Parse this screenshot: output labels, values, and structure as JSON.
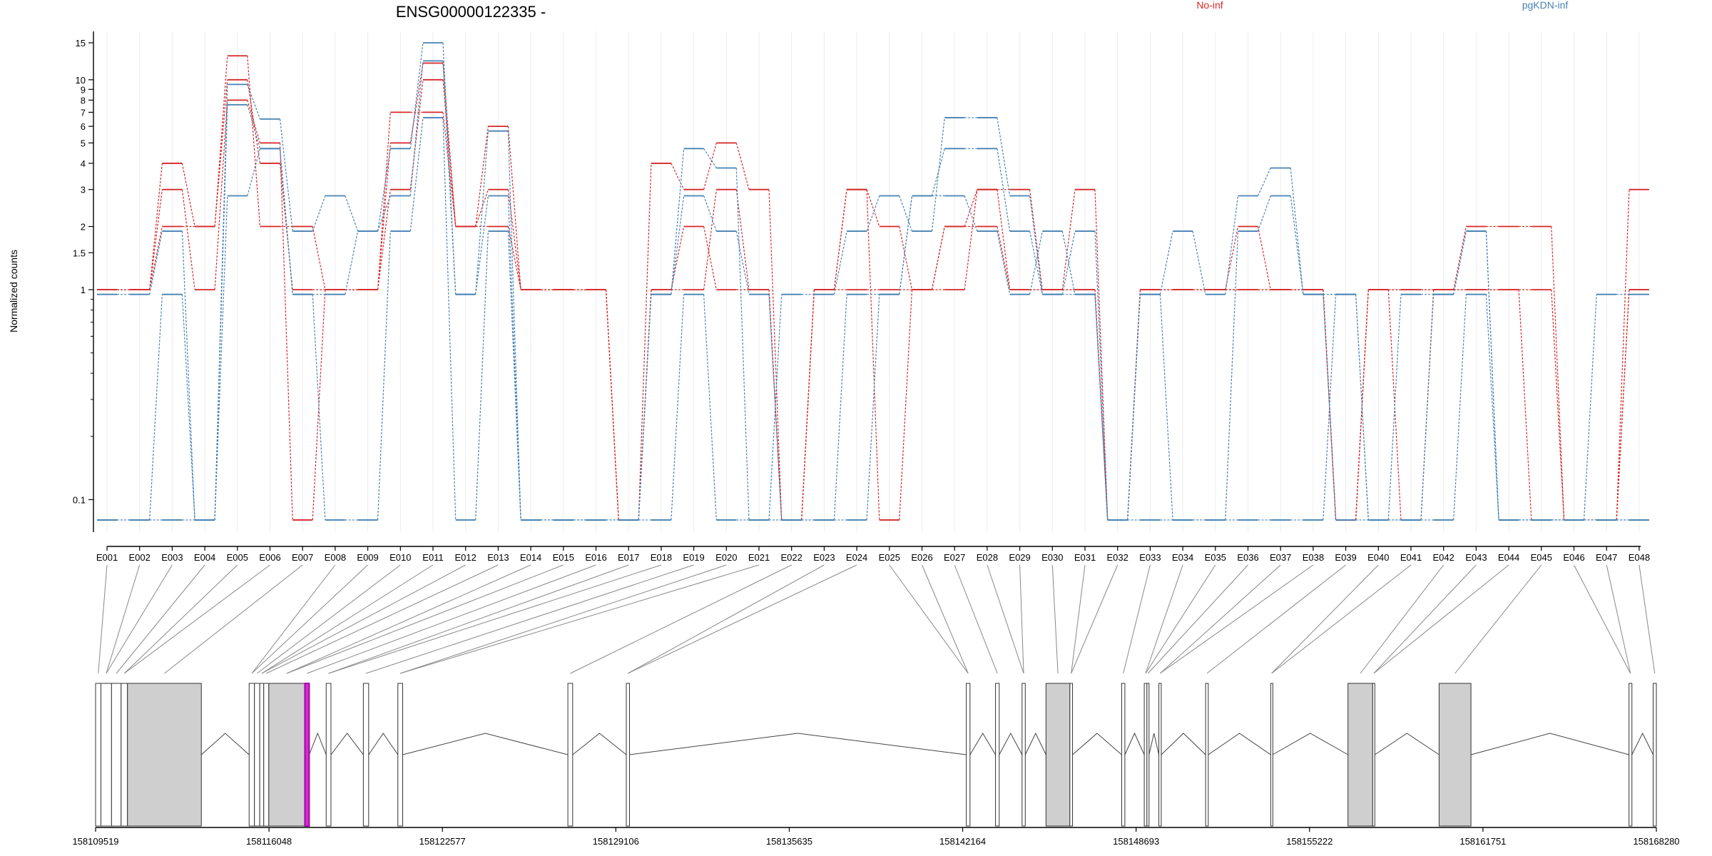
{
  "page": {
    "title": "ENSG00000122335 -",
    "legend": [
      {
        "name": "No-inf",
        "color": "#d62728"
      },
      {
        "name": "pgKDN-inf",
        "color": "#4682b4"
      }
    ],
    "ylabel": "Normalized counts"
  },
  "chart_data": {
    "type": "line",
    "title": "ENSG00000122335 -",
    "ylabel": "Normalized counts",
    "yscale": "log",
    "ylim": [
      0.07,
      17
    ],
    "grid": "vertical",
    "legend_position": "top",
    "ytick_labels": [
      "15",
      "10",
      "9",
      "8",
      "7",
      "6",
      "5",
      "4",
      "3",
      "2",
      "1.5",
      "1",
      "0.1"
    ],
    "yticks": [
      15,
      10,
      9,
      8,
      7,
      6,
      5,
      4,
      3,
      2,
      1.5,
      1,
      0.1
    ],
    "categories": [
      "E001",
      "E002",
      "E003",
      "E004",
      "E005",
      "E006",
      "E007",
      "E008",
      "E009",
      "E010",
      "E011",
      "E012",
      "E013",
      "E014",
      "E015",
      "E016",
      "E017",
      "E018",
      "E019",
      "E020",
      "E021",
      "E022",
      "E023",
      "E024",
      "E025",
      "E026",
      "E027",
      "E028",
      "E029",
      "E030",
      "E031",
      "E032",
      "E033",
      "E034",
      "E035",
      "E036",
      "E037",
      "E038",
      "E039",
      "E040",
      "E041",
      "E042",
      "E043",
      "E044",
      "E045",
      "E046",
      "E047",
      "E048"
    ],
    "series": [
      {
        "name": "No-inf",
        "group": "No-inf",
        "color": "#d62728",
        "values": [
          1,
          1,
          4,
          2,
          13,
          2,
          2,
          1,
          1,
          5,
          12,
          2,
          6,
          1,
          1,
          1,
          0.08,
          4,
          3,
          5,
          3,
          0.08,
          1,
          3,
          2,
          1,
          1,
          3,
          3,
          1,
          3,
          0.08,
          1,
          1,
          1,
          2,
          1,
          1,
          0.08,
          1,
          1,
          1,
          2,
          2,
          2,
          0.08,
          0.08,
          3
        ]
      },
      {
        "name": "No-inf",
        "group": "No-inf",
        "color": "#d62728",
        "values": [
          1,
          1,
          2,
          2,
          10,
          4,
          1,
          1,
          1,
          3,
          10,
          2,
          3,
          1,
          1,
          1,
          0.08,
          1,
          1,
          3,
          1,
          0.08,
          1,
          3,
          0.08,
          1,
          2,
          3,
          1,
          1,
          1,
          0.08,
          1,
          1,
          1,
          1,
          1,
          1,
          0.08,
          1,
          1,
          1,
          1,
          1,
          0.08,
          0.08,
          0.08,
          1
        ]
      },
      {
        "name": "No-inf",
        "group": "No-inf",
        "color": "#d62728",
        "values": [
          1,
          1,
          3,
          1,
          8,
          5,
          0.08,
          1,
          1,
          7,
          7,
          2,
          2,
          1,
          1,
          1,
          0.08,
          1,
          2,
          1,
          1,
          0.08,
          1,
          1,
          1,
          1,
          2,
          2,
          1,
          1,
          1,
          0.08,
          1,
          1,
          1,
          1,
          1,
          1,
          0.08,
          1,
          0.08,
          1,
          1,
          1,
          1,
          0.08,
          0.08,
          1
        ]
      },
      {
        "name": "pgKDN-inf",
        "group": "pgKDN-inf",
        "color": "#4682b4",
        "values": [
          0.95,
          0.95,
          1.9,
          0.08,
          9.5,
          6.5,
          1.9,
          2.8,
          1.9,
          4.7,
          15,
          0.95,
          5.7,
          0.08,
          0.08,
          0.08,
          0.08,
          0.95,
          4.7,
          3.8,
          0.08,
          0.95,
          0.95,
          1.9,
          2.8,
          1.9,
          6.6,
          6.6,
          2.8,
          0.95,
          1.9,
          0.08,
          0.95,
          1.9,
          0.95,
          2.8,
          3.8,
          0.95,
          0.95,
          0.08,
          0.95,
          0.95,
          1.9,
          0.08,
          0.08,
          0.08,
          0.95,
          0.95
        ]
      },
      {
        "name": "pgKDN-inf",
        "group": "pgKDN-inf",
        "color": "#4682b4",
        "values": [
          0.08,
          0.08,
          0.95,
          0.08,
          7.6,
          4.7,
          0.95,
          0.95,
          1.9,
          2.8,
          12.3,
          0.95,
          2.8,
          0.08,
          0.08,
          0.08,
          0.08,
          0.95,
          2.8,
          1.9,
          0.95,
          0.08,
          0.08,
          0.95,
          0.95,
          2.8,
          4.7,
          4.7,
          1.9,
          0.95,
          0.95,
          0.08,
          0.95,
          0.08,
          0.08,
          1.9,
          2.8,
          0.95,
          0.08,
          0.08,
          0.08,
          0.95,
          1.9,
          0.08,
          0.08,
          0.08,
          0.08,
          0.08
        ]
      },
      {
        "name": "pgKDN-inf",
        "group": "pgKDN-inf",
        "color": "#4682b4",
        "values": [
          0.08,
          0.08,
          0.08,
          0.08,
          2.8,
          4.7,
          0.95,
          0.08,
          0.08,
          1.9,
          6.6,
          0.08,
          1.9,
          0.08,
          0.08,
          0.08,
          0.08,
          0.08,
          0.95,
          0.08,
          0.08,
          0.08,
          0.08,
          0.08,
          0.95,
          2.8,
          2.8,
          1.9,
          0.95,
          1.9,
          0.95,
          0.08,
          0.08,
          0.08,
          0.08,
          0.08,
          0.08,
          0.08,
          0.95,
          0.08,
          0.08,
          0.08,
          0.95,
          0.08,
          0.08,
          0.08,
          0.08,
          0.08
        ]
      }
    ],
    "genomic_axis": {
      "tick_labels": [
        "158109519",
        "158116048",
        "158122577",
        "158129106",
        "158135635",
        "158142164",
        "158148693",
        "158155222",
        "158161751",
        "158168280"
      ],
      "ticks": [
        158109519,
        158116048,
        158122577,
        158129106,
        158135635,
        158142164,
        158148693,
        158155222,
        158161751,
        158168280
      ]
    },
    "exons": [
      {
        "id": "E001",
        "start": 158109519,
        "end": 158109720
      },
      {
        "id": "E002",
        "start": 158109720,
        "end": 158110120
      },
      {
        "id": "E003",
        "start": 158110120,
        "end": 158110480
      },
      {
        "id": "E004",
        "start": 158110480,
        "end": 158110720
      },
      {
        "id": "E005",
        "start": 158110720,
        "end": 158113500
      },
      {
        "id": "E006",
        "start": 158115300,
        "end": 158115500
      },
      {
        "id": "E007",
        "start": 158115500,
        "end": 158115700
      },
      {
        "id": "E008",
        "start": 158115700,
        "end": 158115850
      },
      {
        "id": "E009",
        "start": 158115850,
        "end": 158116040
      },
      {
        "id": "E010",
        "start": 158116040,
        "end": 158117400
      },
      {
        "id": "E011",
        "start": 158117400,
        "end": 158117560
      },
      {
        "id": "E012",
        "start": 158118200,
        "end": 158118380
      },
      {
        "id": "E013",
        "start": 158119600,
        "end": 158119800
      },
      {
        "id": "E014",
        "start": 158120900,
        "end": 158121080
      },
      {
        "id": "E015",
        "start": 158127300,
        "end": 158127480
      },
      {
        "id": "E016",
        "start": 158129500,
        "end": 158129620
      },
      {
        "id": "E017",
        "start": 158142300,
        "end": 158142440
      },
      {
        "id": "E018",
        "start": 158143400,
        "end": 158143540
      },
      {
        "id": "E019",
        "start": 158144400,
        "end": 158144520
      },
      {
        "id": "E020",
        "start": 158145300,
        "end": 158146200
      },
      {
        "id": "E021",
        "start": 158146200,
        "end": 158146300
      },
      {
        "id": "E022",
        "start": 158148150,
        "end": 158148270
      },
      {
        "id": "E023",
        "start": 158149000,
        "end": 158149100
      },
      {
        "id": "E024",
        "start": 158149100,
        "end": 158149180
      },
      {
        "id": "E025",
        "start": 158149550,
        "end": 158149640
      },
      {
        "id": "E026",
        "start": 158151310,
        "end": 158151410
      },
      {
        "id": "E027",
        "start": 158153760,
        "end": 158153830
      },
      {
        "id": "E028",
        "start": 158156670,
        "end": 158157600
      },
      {
        "id": "E029",
        "start": 158157600,
        "end": 158157680
      },
      {
        "id": "E030",
        "start": 158160100,
        "end": 158161300
      },
      {
        "id": "E031",
        "start": 158167250,
        "end": 158167360
      },
      {
        "id": "E032",
        "start": 158168160,
        "end": 158168280
      }
    ],
    "highlighted_exon": "E011"
  }
}
